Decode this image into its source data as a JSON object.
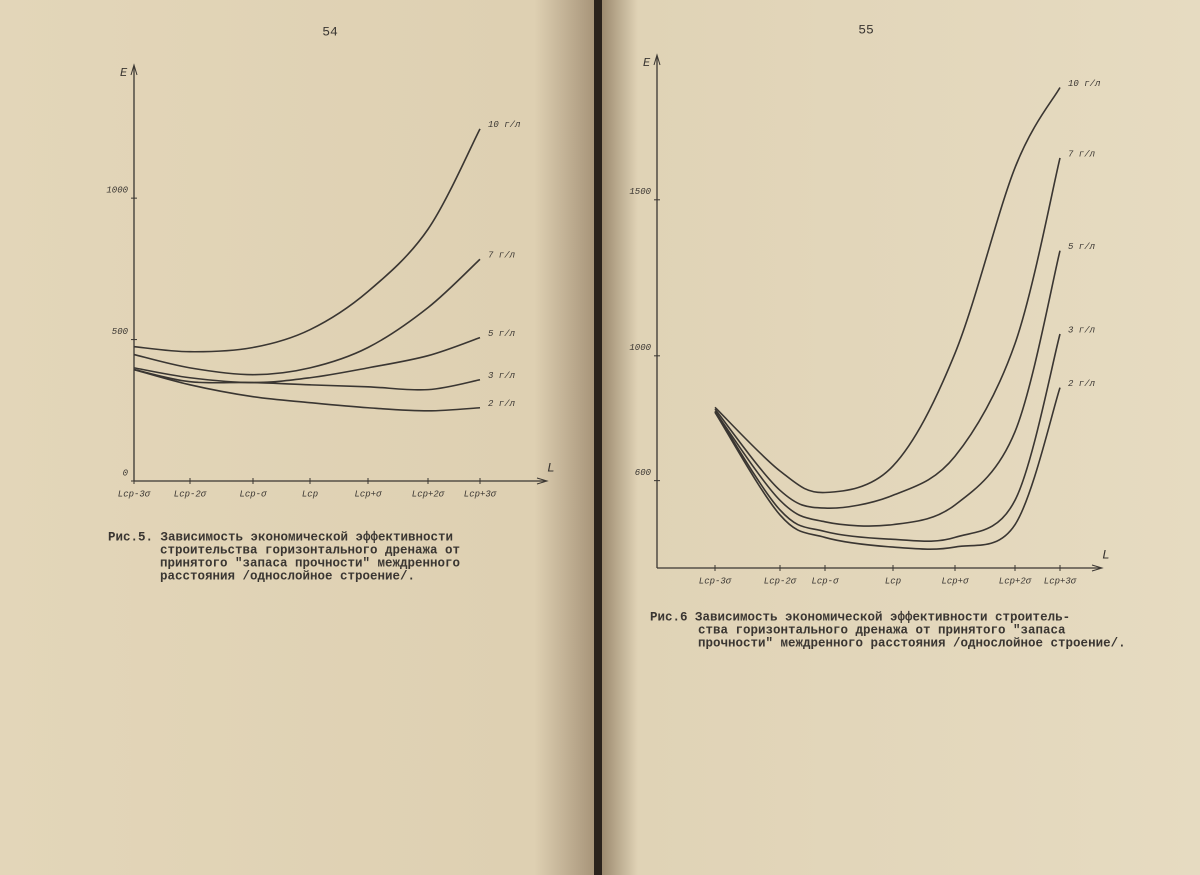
{
  "chart_data": [
    {
      "type": "line",
      "page_number": "54",
      "y_label": "E",
      "x_label": "L",
      "categories": [
        "Lср-3σ",
        "Lср-2σ",
        "Lср-σ",
        "Lср",
        "Lср+σ",
        "Lср+2σ",
        "Lср+3σ"
      ],
      "ylim": [
        0,
        1400
      ],
      "yticks": [
        0,
        500,
        1000
      ],
      "series": [
        {
          "name": "10 г/л",
          "color": "#3a3632",
          "values": [
            475,
            457,
            472,
            535,
            670,
            890,
            1245
          ]
        },
        {
          "name": "7 г/л",
          "color": "#3a3632",
          "values": [
            447,
            400,
            376,
            400,
            472,
            613,
            784
          ]
        },
        {
          "name": "5 г/л",
          "color": "#3a3632",
          "values": [
            400,
            365,
            348,
            365,
            400,
            443,
            507
          ]
        },
        {
          "name": "3 г/л",
          "color": "#3a3632",
          "values": [
            394,
            351,
            348,
            340,
            333,
            323,
            358
          ]
        },
        {
          "name": "2 г/л",
          "color": "#3a3632",
          "values": [
            394,
            340,
            298,
            277,
            259,
            248,
            259
          ]
        }
      ],
      "caption": [
        "Рис.5. Зависимость экономической эффективности",
        "строительства горизонтального дренажа от",
        "принятого \"запаса прочности\" междренного",
        "расстояния /однослойное строение/."
      ]
    },
    {
      "type": "line",
      "page_number": "55",
      "y_label": "E",
      "x_label": "L",
      "categories": [
        "Lср-3σ",
        "Lср-2σ",
        "Lср-σ",
        "Lср",
        "Lср+σ",
        "Lср+2σ",
        "Lср+3σ"
      ],
      "ylim": [
        320,
        1900
      ],
      "yticks": [
        600,
        1000,
        1500
      ],
      "series": [
        {
          "name": "10 г/л",
          "color": "#3a3632",
          "values": [
            835,
            631,
            562,
            647,
            1008,
            1603,
            1860
          ]
        },
        {
          "name": "7 г/л",
          "color": "#3a3632",
          "values": [
            829,
            569,
            512,
            553,
            678,
            1039,
            1634
          ]
        },
        {
          "name": "5 г/л",
          "color": "#3a3632",
          "values": [
            822,
            537,
            468,
            459,
            522,
            757,
            1337
          ]
        },
        {
          "name": "3 г/л",
          "color": "#3a3632",
          "values": [
            822,
            506,
            437,
            412,
            418,
            537,
            1070
          ]
        },
        {
          "name": "2 г/л",
          "color": "#3a3632",
          "values": [
            819,
            490,
            418,
            387,
            387,
            459,
            898
          ]
        }
      ],
      "caption": [
        "Рис.6 Зависимость экономической эффективности строитель-",
        "ства горизонтального дренажа от принятого \"запаса",
        "прочности\" междренного расстояния /однослойное строение/."
      ]
    }
  ]
}
